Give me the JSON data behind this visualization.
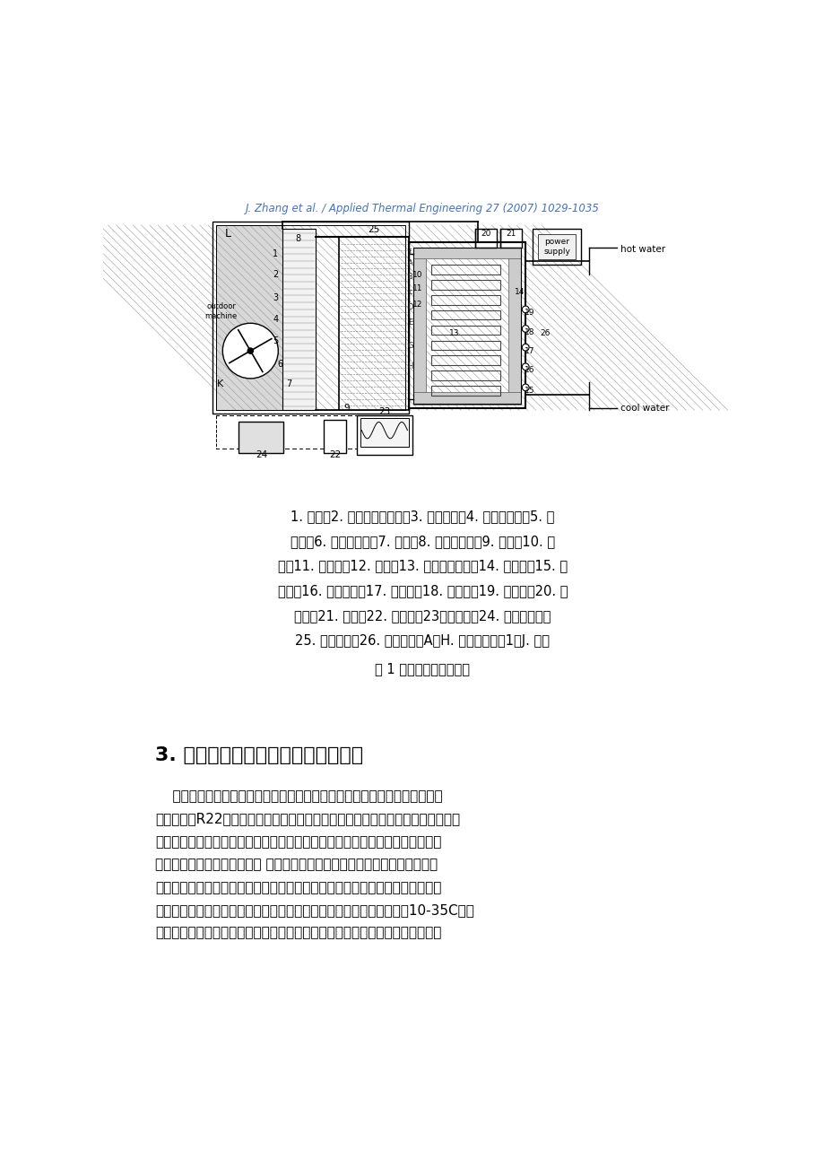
{
  "header": "J. Zhang et al. / Applied Thermal Engineering 27 (2007) 1029-1035",
  "fig_caption": "图 1 实验装置结构不意图",
  "section_title": "3. 空气源热泵热水器的制冷剂充注量",
  "background_color": "#ffffff",
  "text_color": "#000000",
  "header_color": "#4472c4"
}
